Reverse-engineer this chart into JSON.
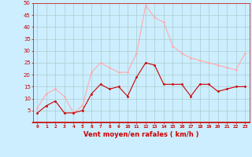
{
  "x": [
    0,
    1,
    2,
    3,
    4,
    5,
    6,
    7,
    8,
    9,
    10,
    11,
    12,
    13,
    14,
    15,
    16,
    17,
    18,
    19,
    20,
    21,
    22,
    23
  ],
  "wind_avg": [
    4,
    7,
    9,
    4,
    4,
    5,
    12,
    16,
    14,
    15,
    11,
    19,
    25,
    24,
    16,
    16,
    16,
    11,
    16,
    16,
    13,
    14,
    15,
    15
  ],
  "wind_gust": [
    6,
    12,
    14,
    11,
    4,
    7,
    21,
    25,
    23,
    21,
    21,
    29,
    49,
    44,
    42,
    32,
    29,
    27,
    26,
    25,
    24,
    23,
    22,
    29
  ],
  "avg_color": "#cc0000",
  "gust_color": "#ffaaaa",
  "bg_color": "#cceeff",
  "grid_color": "#aacccc",
  "xlabel": "Vent moyen/en rafales ( km/h )",
  "xlabel_color": "#cc0000",
  "tick_color": "#cc0000",
  "ylim": [
    0,
    50
  ],
  "yticks": [
    0,
    5,
    10,
    15,
    20,
    25,
    30,
    35,
    40,
    45,
    50
  ]
}
